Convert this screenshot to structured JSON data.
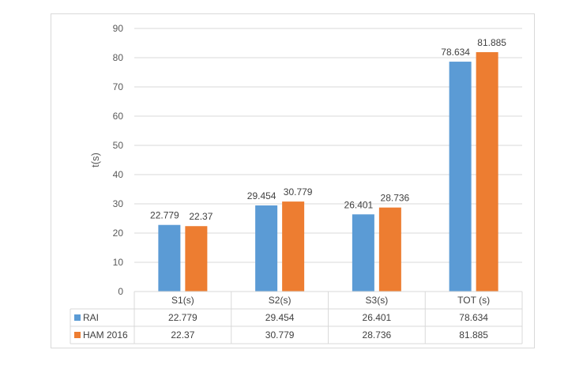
{
  "chart_data": {
    "type": "bar",
    "title": "",
    "xlabel": "",
    "ylabel": "t(s)",
    "ylim": [
      0,
      90
    ],
    "ytick_step": 10,
    "grid": true,
    "legend": "data-table",
    "categories": [
      "S1(s)",
      "S2(s)",
      "S3(s)",
      "TOT (s)"
    ],
    "series": [
      {
        "name": "RAI",
        "color": "#5b9bd5",
        "values": [
          22.779,
          29.454,
          26.401,
          78.634
        ],
        "labels": [
          "22.779",
          "29.454",
          "26.401",
          "78.634"
        ]
      },
      {
        "name": "HAM 2016",
        "color": "#ed7d31",
        "values": [
          22.37,
          30.779,
          28.736,
          81.885
        ],
        "labels": [
          "22.37",
          "30.779",
          "28.736",
          "81.885"
        ]
      }
    ]
  }
}
